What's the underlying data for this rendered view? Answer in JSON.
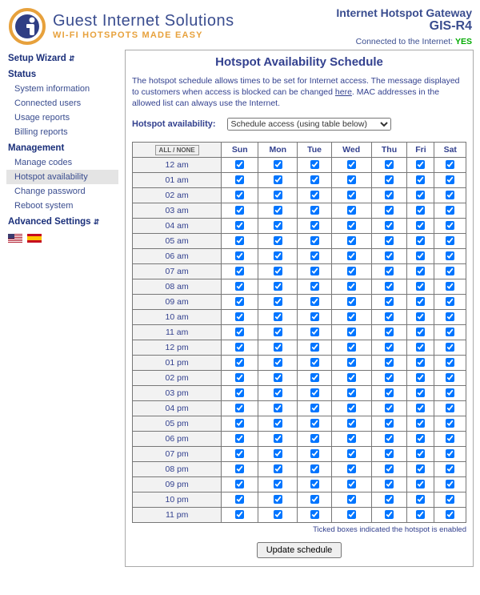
{
  "brand": {
    "title": "Guest Internet Solutions",
    "subtitle": "WI-FI HOTSPOTS MADE EASY",
    "title_color": "#3a4d8f",
    "subtitle_color": "#e7a13c"
  },
  "header": {
    "gateway": "Internet Hotspot Gateway",
    "model": "GIS-R4",
    "connected_label": "Connected to the Internet:",
    "connected_value": "YES"
  },
  "sidebar": {
    "sections": [
      {
        "heading": "Setup Wizard",
        "arrows": true,
        "items": []
      },
      {
        "heading": "Status",
        "items": [
          {
            "label": "System information",
            "active": false
          },
          {
            "label": "Connected users",
            "active": false
          },
          {
            "label": "Usage reports",
            "active": false
          },
          {
            "label": "Billing reports",
            "active": false
          }
        ]
      },
      {
        "heading": "Management",
        "items": [
          {
            "label": "Manage codes",
            "active": false
          },
          {
            "label": "Hotspot availability",
            "active": true
          },
          {
            "label": "Change password",
            "active": false
          },
          {
            "label": "Reboot system",
            "active": false
          }
        ]
      },
      {
        "heading": "Advanced Settings",
        "arrows": true,
        "items": []
      }
    ]
  },
  "content": {
    "title": "Hotspot Availability Schedule",
    "desc1": "The hotspot schedule allows times to be set for Internet access. The message displayed to customers when access is blocked can be changed ",
    "desc_link": "here",
    "desc2": ". MAC addresses in the allowed list can always use the Internet.",
    "avail_label": "Hotspot availability:",
    "avail_select": "Schedule access (using table below)",
    "allnone_label": "ALL / NONE",
    "days": [
      "Sun",
      "Mon",
      "Tue",
      "Wed",
      "Thu",
      "Fri",
      "Sat"
    ],
    "hours": [
      "12 am",
      "01 am",
      "02 am",
      "03 am",
      "04 am",
      "05 am",
      "06 am",
      "07 am",
      "08 am",
      "09 am",
      "10 am",
      "11 am",
      "12 pm",
      "01 pm",
      "02 pm",
      "03 pm",
      "04 pm",
      "05 pm",
      "06 pm",
      "07 pm",
      "08 pm",
      "09 pm",
      "10 pm",
      "11 pm"
    ],
    "checked_all": true,
    "footnote": "Ticked boxes indicated the hotspot is enabled",
    "update_label": "Update schedule"
  },
  "colors": {
    "border": "#777",
    "primary_text": "#33418f",
    "row_alt": "#f2f2f2"
  }
}
